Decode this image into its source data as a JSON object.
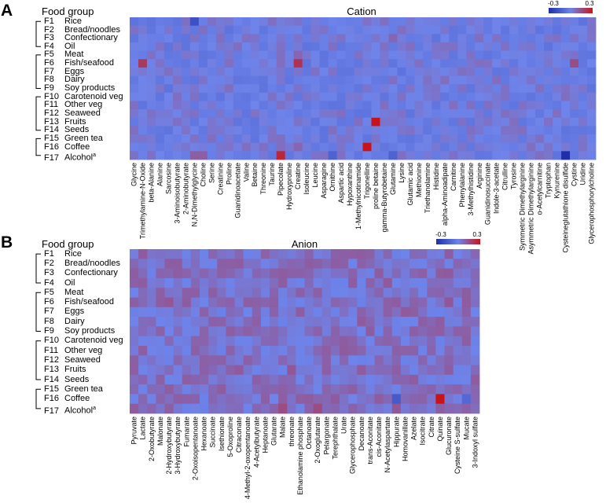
{
  "panels": [
    {
      "letter": "A",
      "group_header": "Food group",
      "title": "Cation",
      "legend": {
        "min_label": "-0.3",
        "max_label": "0.3"
      },
      "rows": [
        {
          "code": "F1",
          "label": "Rice"
        },
        {
          "code": "F2",
          "label": "Bread/noodles"
        },
        {
          "code": "F3",
          "label": "Confectionary"
        },
        {
          "code": "F4",
          "label": "Oil"
        },
        {
          "code": "F5",
          "label": "Meat"
        },
        {
          "code": "F6",
          "label": "Fish/seafood"
        },
        {
          "code": "F7",
          "label": "Eggs"
        },
        {
          "code": "F8",
          "label": "Dairy"
        },
        {
          "code": "F9",
          "label": "Soy products"
        },
        {
          "code": "F10",
          "label": "Carotenoid veg"
        },
        {
          "code": "F11",
          "label": "Other veg"
        },
        {
          "code": "F12",
          "label": "Seaweed"
        },
        {
          "code": "F13",
          "label": "Fruits"
        },
        {
          "code": "F14",
          "label": "Seeds"
        },
        {
          "code": "F15",
          "label": "Green tea"
        },
        {
          "code": "F16",
          "label": "Coffee"
        },
        {
          "code": "F17",
          "label": "Alcohol",
          "sup": "a"
        }
      ]
    },
    {
      "letter": "B",
      "group_header": "Food group",
      "title": "Anion",
      "legend": {
        "min_label": "-0.3",
        "max_label": "0.3"
      },
      "rows": [
        {
          "code": "F1",
          "label": "Rice"
        },
        {
          "code": "F2",
          "label": "Bread/noodles"
        },
        {
          "code": "F3",
          "label": "Confectionary"
        },
        {
          "code": "F4",
          "label": "Oil"
        },
        {
          "code": "F5",
          "label": "Meat"
        },
        {
          "code": "F6",
          "label": "Fish/seafood"
        },
        {
          "code": "F7",
          "label": "Eggs"
        },
        {
          "code": "F8",
          "label": "Dairy"
        },
        {
          "code": "F9",
          "label": "Soy products"
        },
        {
          "code": "F10",
          "label": "Carotenoid veg"
        },
        {
          "code": "F11",
          "label": "Other veg"
        },
        {
          "code": "F12",
          "label": "Seaweed"
        },
        {
          "code": "F13",
          "label": "Fruits"
        },
        {
          "code": "F14",
          "label": "Seeds"
        },
        {
          "code": "F15",
          "label": "Green tea"
        },
        {
          "code": "F16",
          "label": "Coffee"
        },
        {
          "code": "F17",
          "label": "Alcohol",
          "sup": "a"
        }
      ]
    }
  ],
  "colors": {
    "negative": "#1f2fa8",
    "neutral": "#6e84ea",
    "positive": "#c81418"
  },
  "chart_data": [
    {
      "type": "heatmap",
      "title": "Cation",
      "color_range": [
        -0.3,
        0.3
      ],
      "rows": [
        "F1",
        "F2",
        "F3",
        "F4",
        "F5",
        "F6",
        "F7",
        "F8",
        "F9",
        "F10",
        "F11",
        "F12",
        "F13",
        "F14",
        "F15",
        "F16",
        "F17"
      ],
      "columns": [
        "Glycine",
        "Trimethylamine-N-Oxide",
        "beta-Alanine",
        "Alanine",
        "Sarcosine",
        "3-Aminoisobutyrate",
        "2-Aminobutyrate",
        "N,N-Dimethylglycine",
        "Choline",
        "Serine",
        "Creatinine",
        "Proline",
        "Guanidinoacetate",
        "Valine",
        "Betaine",
        "Threonine",
        "Taurine",
        "Pipecolate",
        "Hydroxyproline",
        "Creatine",
        "Isoleucine",
        "Leucine",
        "Asparagine",
        "Ornithine",
        "Aspartic acid",
        "Hypoxanthine",
        "1-Methylnicotinamide",
        "Trigonelline",
        "proline betaine",
        "gamma-Butyrobetaine",
        "Glutamine",
        "Lysine",
        "Glutamic acid",
        "Methionine",
        "Triethanolamine",
        "Histidine",
        "alpha-Aminoadipate",
        "Carnitine",
        "Phenylalanine",
        "3-Methylhistidine",
        "Arginine",
        "Guanidinosuccinate",
        "Indole-3-acetate",
        "Citrulline",
        "Tyrosine",
        "Symmetric Dimethylarginine",
        "Asymmetric Dimethylarginine",
        "o-Acetylcarnitine",
        "Tryptophan",
        "Kynurenine",
        "Cysteineglutathione disulfide",
        "Cystine",
        "Uridine",
        "Glycerophosphorylcholine"
      ],
      "baseline": 0.0,
      "highlights": [
        {
          "row": "F6",
          "col": "Trimethylamine-N-Oxide",
          "value": 0.2
        },
        {
          "row": "F6",
          "col": "Creatine",
          "value": 0.22
        },
        {
          "row": "F6",
          "col": "Cystine",
          "value": 0.15
        },
        {
          "row": "F13",
          "col": "proline betaine",
          "value": 0.3
        },
        {
          "row": "F16",
          "col": "Trigonelline",
          "value": 0.3
        },
        {
          "row": "F17",
          "col": "Pipecolate",
          "value": 0.25
        },
        {
          "row": "F17",
          "col": "Choline",
          "value": 0.1
        },
        {
          "row": "F17",
          "col": "N,N-Dimethylglycine",
          "value": 0.1
        },
        {
          "row": "F17",
          "col": "Cysteineglutathione disulfide",
          "value": -0.3
        },
        {
          "row": "F17",
          "col": "Ornithine",
          "value": -0.12
        },
        {
          "row": "F17",
          "col": "Glutamine",
          "value": -0.12
        },
        {
          "row": "F1",
          "col": "N,N-Dimethylglycine",
          "value": -0.18
        },
        {
          "row": "F3",
          "col": "Glutamine",
          "value": 0.08
        },
        {
          "row": "F5",
          "col": "Creatine",
          "value": 0.08
        },
        {
          "row": "F16",
          "col": "Creatine",
          "value": 0.08
        }
      ]
    },
    {
      "type": "heatmap",
      "title": "Anion",
      "color_range": [
        -0.3,
        0.3
      ],
      "rows": [
        "F1",
        "F2",
        "F3",
        "F4",
        "F5",
        "F6",
        "F7",
        "F8",
        "F9",
        "F10",
        "F11",
        "F12",
        "F13",
        "F14",
        "F15",
        "F16",
        "F17"
      ],
      "columns": [
        "Pyruvate",
        "Lactate",
        "2-Oxobutyrate",
        "Malonate",
        "2-Hydroxybutyrate",
        "3-Hydroxybutyrate",
        "Fumarate",
        "2-Oxoisopentanoate",
        "Hexanoate",
        "Succinate",
        "Isethionate",
        "5-Oxoproline",
        "Citraconate",
        "4-Methyl-2-oxopentanoate",
        "4-Acetylbutyrate",
        "Heptanoate",
        "Glutarate",
        "Malate",
        "threonate",
        "Ethanolamine phosphate",
        "Octanoate",
        "2-Oxoglutarate",
        "Pelargonate",
        "Terephthalate",
        "Urate",
        "Glycerophosphate",
        "Decanoate",
        "trans-Aconitate",
        "cis-Aconitate",
        "N-Acetylaspartate",
        "Hippurate",
        "Homovanillate",
        "Azelate",
        "Isocitrate",
        "Citrate",
        "Quinate",
        "Glucuronate",
        "Cysteine S-sulfate",
        "Mucate",
        "3-Indoxyl sulfate"
      ],
      "baseline": 0.05,
      "highlights": [
        {
          "row": "F16",
          "col": "Quinate",
          "value": 0.3
        },
        {
          "row": "F17",
          "col": "Malate",
          "value": 0.15
        },
        {
          "row": "F17",
          "col": "2-Oxoglutarate",
          "value": 0.15
        },
        {
          "row": "F17",
          "col": "Hippurate",
          "value": 0.12
        },
        {
          "row": "F17",
          "col": "2-Hydroxybutyrate",
          "value": 0.1
        },
        {
          "row": "F13",
          "col": "threonate",
          "value": 0.12
        },
        {
          "row": "F13",
          "col": "Hippurate",
          "value": 0.1
        },
        {
          "row": "F6",
          "col": "2-Hydroxybutyrate",
          "value": 0.12
        },
        {
          "row": "F6",
          "col": "Glucuronate",
          "value": 0.12
        },
        {
          "row": "F16",
          "col": "Hippurate",
          "value": -0.15
        },
        {
          "row": "F16",
          "col": "Mucate",
          "value": -0.1
        }
      ]
    }
  ]
}
